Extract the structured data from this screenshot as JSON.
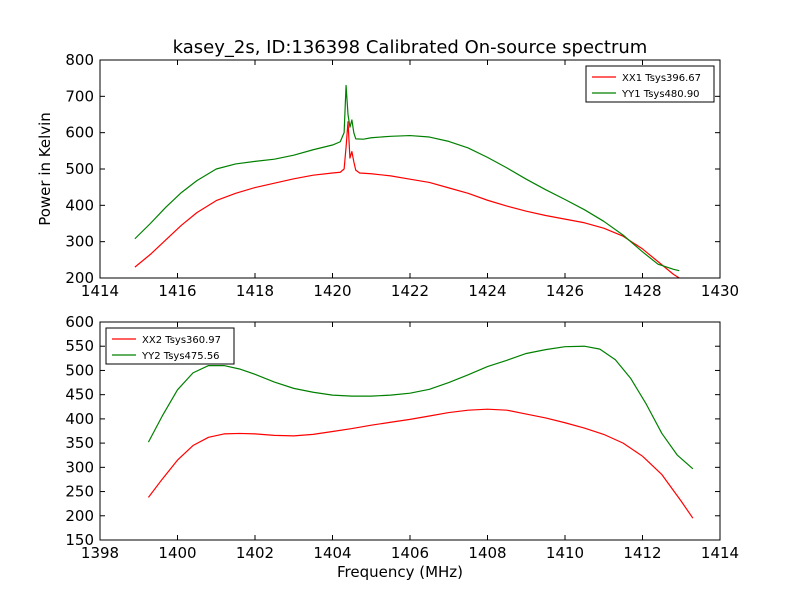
{
  "title": "kasey_2s, ID:136398 Calibrated On-source spectrum",
  "chart_data": [
    {
      "type": "line",
      "ylabel": "Power in Kelvin",
      "xlabel": "",
      "xlim": [
        1414,
        1430
      ],
      "ylim": [
        200,
        800
      ],
      "xticks": [
        1414,
        1416,
        1418,
        1420,
        1422,
        1424,
        1426,
        1428,
        1430
      ],
      "yticks": [
        200,
        300,
        400,
        500,
        600,
        700,
        800
      ],
      "legend_position": "top-right",
      "grid": false,
      "series": [
        {
          "name": "XX1 Tsys396.67",
          "color": "#ff0000",
          "x": [
            1414.9,
            1415.3,
            1415.7,
            1416.1,
            1416.5,
            1417.0,
            1417.5,
            1418.0,
            1418.5,
            1419.0,
            1419.5,
            1420.0,
            1420.2,
            1420.3,
            1420.35,
            1420.4,
            1420.45,
            1420.5,
            1420.55,
            1420.6,
            1420.7,
            1421.0,
            1421.5,
            1422.0,
            1422.5,
            1423.0,
            1423.5,
            1424.0,
            1424.5,
            1425.0,
            1425.5,
            1426.0,
            1426.5,
            1427.0,
            1427.5,
            1428.0,
            1428.4,
            1428.8,
            1428.95
          ],
          "values": [
            230,
            265,
            305,
            345,
            380,
            413,
            433,
            449,
            461,
            473,
            483,
            489,
            491,
            500,
            560,
            630,
            530,
            548,
            520,
            497,
            489,
            487,
            481,
            472,
            463,
            448,
            433,
            414,
            398,
            384,
            372,
            362,
            352,
            337,
            315,
            280,
            245,
            210,
            200
          ]
        },
        {
          "name": "YY1 Tsys480.90",
          "color": "#008000",
          "x": [
            1414.9,
            1415.3,
            1415.7,
            1416.1,
            1416.5,
            1417.0,
            1417.5,
            1418.0,
            1418.5,
            1419.0,
            1419.5,
            1420.0,
            1420.2,
            1420.3,
            1420.35,
            1420.4,
            1420.45,
            1420.5,
            1420.55,
            1420.6,
            1420.8,
            1421.0,
            1421.5,
            1422.0,
            1422.5,
            1423.0,
            1423.5,
            1424.0,
            1424.5,
            1425.0,
            1425.5,
            1426.0,
            1426.5,
            1427.0,
            1427.5,
            1428.0,
            1428.4,
            1428.8,
            1428.95
          ],
          "values": [
            308,
            350,
            395,
            435,
            468,
            500,
            514,
            521,
            527,
            538,
            553,
            566,
            575,
            600,
            730,
            650,
            615,
            635,
            600,
            583,
            582,
            586,
            590,
            592,
            588,
            576,
            558,
            532,
            503,
            472,
            443,
            416,
            388,
            356,
            318,
            272,
            238,
            224,
            220
          ]
        }
      ]
    },
    {
      "type": "line",
      "ylabel": "",
      "xlabel": "Frequency (MHz)",
      "xlim": [
        1398,
        1414
      ],
      "ylim": [
        150,
        600
      ],
      "xticks": [
        1398,
        1400,
        1402,
        1404,
        1406,
        1408,
        1410,
        1412,
        1414
      ],
      "yticks": [
        150,
        200,
        250,
        300,
        350,
        400,
        450,
        500,
        550,
        600
      ],
      "legend_position": "top-left",
      "grid": false,
      "series": [
        {
          "name": "XX2 Tsys360.97",
          "color": "#ff0000",
          "x": [
            1399.25,
            1399.6,
            1400.0,
            1400.4,
            1400.8,
            1401.2,
            1401.6,
            1402.0,
            1402.5,
            1403.0,
            1403.5,
            1404.0,
            1404.5,
            1405.0,
            1405.5,
            1406.0,
            1406.5,
            1407.0,
            1407.5,
            1408.0,
            1408.5,
            1409.0,
            1409.5,
            1410.0,
            1410.5,
            1411.0,
            1411.5,
            1412.0,
            1412.5,
            1413.0,
            1413.3
          ],
          "values": [
            238,
            275,
            315,
            345,
            362,
            369,
            370,
            369,
            366,
            365,
            368,
            374,
            380,
            387,
            393,
            399,
            406,
            413,
            418,
            420,
            418,
            410,
            402,
            392,
            381,
            368,
            350,
            323,
            285,
            230,
            195
          ]
        },
        {
          "name": "YY2 Tsys475.56",
          "color": "#008000",
          "x": [
            1399.25,
            1399.6,
            1400.0,
            1400.4,
            1400.8,
            1401.2,
            1401.6,
            1402.0,
            1402.5,
            1403.0,
            1403.5,
            1404.0,
            1404.5,
            1405.0,
            1405.5,
            1406.0,
            1406.5,
            1407.0,
            1407.5,
            1408.0,
            1408.5,
            1409.0,
            1409.5,
            1410.0,
            1410.5,
            1410.9,
            1411.3,
            1411.7,
            1412.1,
            1412.5,
            1412.9,
            1413.3
          ],
          "values": [
            352,
            405,
            460,
            495,
            510,
            510,
            503,
            492,
            476,
            463,
            455,
            449,
            447,
            447,
            449,
            453,
            461,
            475,
            491,
            508,
            521,
            535,
            543,
            549,
            550,
            544,
            522,
            483,
            430,
            370,
            325,
            297
          ]
        }
      ]
    }
  ]
}
